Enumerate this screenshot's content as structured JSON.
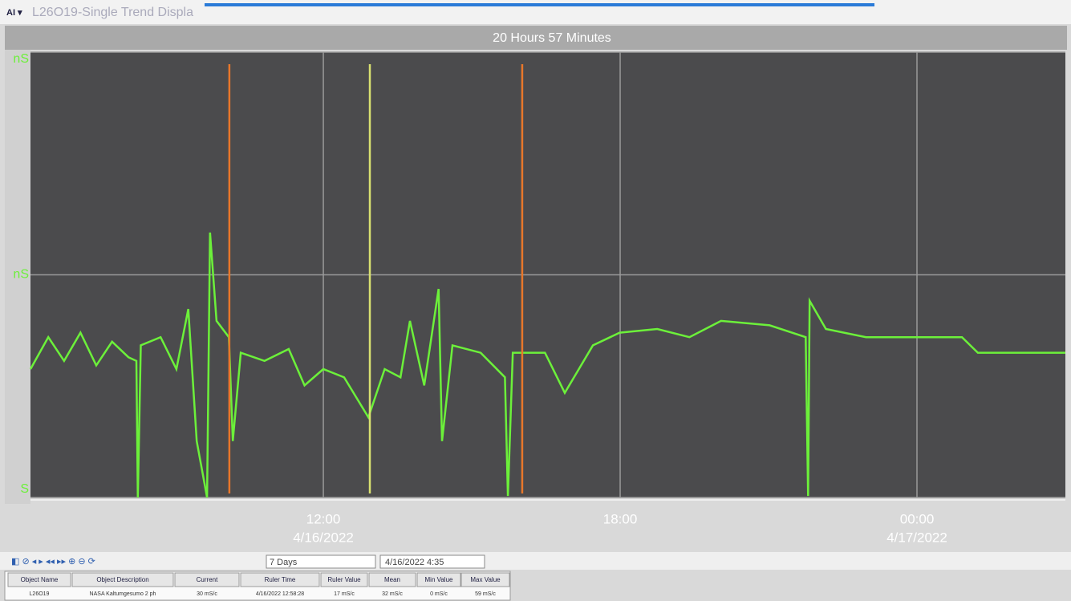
{
  "window": {
    "title": "L26O19-Single Trend Displa"
  },
  "chart_data": {
    "type": "line",
    "title": "20 Hours 57 Minutes",
    "x": [
      6.08,
      6.44,
      6.76,
      7.09,
      7.41,
      7.73,
      8.06,
      8.22,
      8.25,
      8.31,
      8.71,
      9.03,
      9.27,
      9.44,
      9.65,
      9.71,
      9.84,
      10.09,
      10.17,
      10.33,
      10.81,
      11.3,
      11.62,
      12.0,
      12.42,
      12.91,
      13.24,
      13.56,
      13.75,
      14.04,
      14.33,
      14.4,
      14.61,
      15.18,
      15.67,
      15.73,
      15.83,
      16.48,
      16.88,
      17.45,
      17.99,
      18.75,
      19.4,
      20.04,
      21.02,
      21.75,
      21.8,
      21.83,
      22.16,
      22.97,
      24.05,
      24.91,
      25.23,
      26.04,
      27.0
    ],
    "series": [
      {
        "color": "#6cf03a",
        "values": [
          17.3,
          21.6,
          18.4,
          22.2,
          17.8,
          21.0,
          18.9,
          18.4,
          0,
          20.5,
          21.6,
          17.3,
          25.4,
          7.6,
          0,
          35.7,
          23.8,
          21.6,
          7.6,
          19.5,
          18.4,
          20.0,
          15.1,
          17.3,
          16.2,
          10.8,
          17.3,
          16.2,
          23.8,
          15.1,
          28.1,
          7.6,
          20.5,
          19.5,
          16.2,
          0.2,
          19.5,
          19.5,
          14.1,
          20.5,
          22.2,
          22.7,
          21.6,
          23.8,
          23.2,
          21.6,
          0.2,
          26.5,
          22.7,
          21.6,
          21.6,
          21.6,
          19.5,
          19.5,
          19.5
        ]
      }
    ],
    "xlim": [
      6.08,
      27.0
    ],
    "xticks": [
      {
        "value": 12,
        "label": "12:00"
      },
      {
        "value": 18,
        "label": "18:00"
      },
      {
        "value": 24,
        "label": "00:00"
      }
    ],
    "x_tick_dates": [
      {
        "value": 12,
        "label": "4/16/2022"
      },
      {
        "value": 24,
        "label": "4/17/2022"
      }
    ],
    "ylim": [
      0,
      60
    ],
    "yticks": [
      {
        "value": 0,
        "label": "S"
      },
      {
        "value": 30,
        "label": "nS"
      },
      {
        "value": 60,
        "label": "nS"
      }
    ],
    "grid": true,
    "rulers": [
      {
        "color": "#e8772a",
        "x": 10.1
      },
      {
        "color": "#d8e070",
        "x": 12.94
      },
      {
        "color": "#e8772a",
        "x": 16.02
      }
    ]
  },
  "toolbar": {
    "range": "7 Days",
    "date": "4/16/2022  4:35"
  },
  "table": {
    "columns": [
      "Object Name",
      "Object Description",
      "Current",
      "Ruler Time",
      "Ruler Value",
      "Mean",
      "Min Value",
      "Max Value"
    ],
    "rows": [
      [
        "L26O19",
        "NASA Kaltumgesumo 2 ph",
        "30 mS/c",
        "4/16/2022 12:58:28",
        "17 mS/c",
        "32 mS/c",
        "0 mS/c",
        "59 mS/c"
      ]
    ]
  }
}
